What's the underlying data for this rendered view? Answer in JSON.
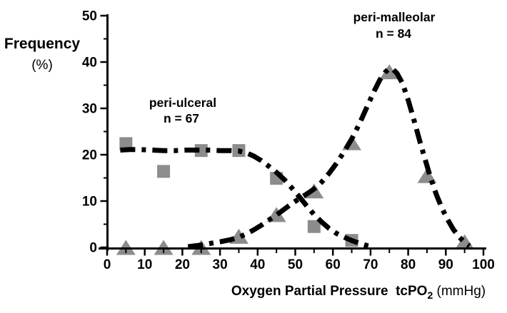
{
  "figure": {
    "y_axis_label": {
      "line1": "Frequency",
      "line2": "(%)"
    },
    "x_axis_label": {
      "main": "Oxygen Partial Pressure  tcPO",
      "sub": "2",
      "unit": " (mmHg)"
    },
    "series_labels": {
      "ulceral": {
        "name_text": "peri-ulceral",
        "n_text": "n = 67"
      },
      "malleolar": {
        "name_text": "peri-malleolar",
        "n_text": "n = 84"
      }
    },
    "colors": {
      "curve": "#000000",
      "marker": "#8c8c8c",
      "background": "#ffffff"
    }
  },
  "chart_data": {
    "type": "line",
    "title": "",
    "xlabel": "Oxygen Partial Pressure tcPO2 (mmHg)",
    "ylabel": "Frequency (%)",
    "xlim": [
      0,
      100
    ],
    "ylim": [
      0,
      50
    ],
    "x_ticks": [
      0,
      10,
      20,
      30,
      40,
      50,
      60,
      70,
      80,
      90,
      100
    ],
    "y_ticks": [
      0,
      10,
      20,
      30,
      40,
      50
    ],
    "x_minor_tick_step": 5,
    "y_minor_tick_step": 5,
    "grid": false,
    "legend_position": "none",
    "line_style": "dash-dot",
    "series": [
      {
        "name": "peri-ulceral",
        "n": 67,
        "marker": "square",
        "marker_color": "#8c8c8c",
        "line_color": "#000000",
        "x": [
          5,
          15,
          25,
          35,
          45,
          55,
          65
        ],
        "y": [
          22.4,
          16.4,
          20.9,
          20.9,
          14.9,
          4.5,
          1.5
        ],
        "curve": [
          [
            3.5,
            21
          ],
          [
            6,
            21.1
          ],
          [
            9,
            21.1
          ],
          [
            12,
            21
          ],
          [
            15,
            20.9
          ],
          [
            18,
            20.9
          ],
          [
            21,
            21
          ],
          [
            24,
            21
          ],
          [
            27,
            21
          ],
          [
            30,
            20.9
          ],
          [
            33,
            20.9
          ],
          [
            35,
            20.8
          ],
          [
            37,
            20.4
          ],
          [
            39,
            19.7
          ],
          [
            41,
            18.7
          ],
          [
            43,
            17.5
          ],
          [
            45,
            16.2
          ],
          [
            47,
            14.7
          ],
          [
            49,
            12.9
          ],
          [
            51,
            11.0
          ],
          [
            53,
            9.0
          ],
          [
            55,
            7.1
          ],
          [
            57,
            5.5
          ],
          [
            59,
            4.1
          ],
          [
            61,
            3.0
          ],
          [
            63,
            2.2
          ],
          [
            65,
            1.5
          ],
          [
            67,
            0.9
          ],
          [
            69,
            0.4
          ],
          [
            70.5,
            0.15
          ]
        ]
      },
      {
        "name": "peri-malleolar",
        "n": 84,
        "marker": "triangle",
        "marker_color": "#8c8c8c",
        "line_color": "#000000",
        "x": [
          5,
          15,
          25,
          35,
          45,
          55,
          65,
          75,
          85,
          95
        ],
        "y": [
          0,
          0,
          0,
          2.4,
          7.1,
          12.2,
          22.6,
          37.9,
          15.5,
          1.2
        ],
        "curve": [
          [
            21.5,
            0.15
          ],
          [
            24,
            0.4
          ],
          [
            27,
            0.8
          ],
          [
            30,
            1.2
          ],
          [
            33,
            1.7
          ],
          [
            35,
            2.2
          ],
          [
            37,
            2.9
          ],
          [
            39,
            3.8
          ],
          [
            41,
            4.8
          ],
          [
            43,
            5.9
          ],
          [
            45,
            7.0
          ],
          [
            47,
            8.2
          ],
          [
            49,
            9.4
          ],
          [
            51,
            10.5
          ],
          [
            53,
            11.5
          ],
          [
            55,
            12.6
          ],
          [
            57,
            14.1
          ],
          [
            59,
            16.0
          ],
          [
            61,
            18.2
          ],
          [
            63,
            20.7
          ],
          [
            65,
            23.4
          ],
          [
            67,
            26.6
          ],
          [
            69,
            30.2
          ],
          [
            71,
            33.8
          ],
          [
            72.5,
            36.2
          ],
          [
            74,
            37.9
          ],
          [
            75,
            38.6
          ],
          [
            76,
            38.4
          ],
          [
            77,
            37.6
          ],
          [
            78.5,
            35.4
          ],
          [
            80,
            31.8
          ],
          [
            81.5,
            27.6
          ],
          [
            83,
            23.2
          ],
          [
            84.5,
            19.0
          ],
          [
            86,
            14.9
          ],
          [
            87.5,
            11.4
          ],
          [
            89,
            8.4
          ],
          [
            90.5,
            6.0
          ],
          [
            92,
            3.9
          ],
          [
            93.5,
            2.3
          ],
          [
            95,
            1.1
          ],
          [
            96.3,
            0.3
          ]
        ]
      }
    ]
  }
}
